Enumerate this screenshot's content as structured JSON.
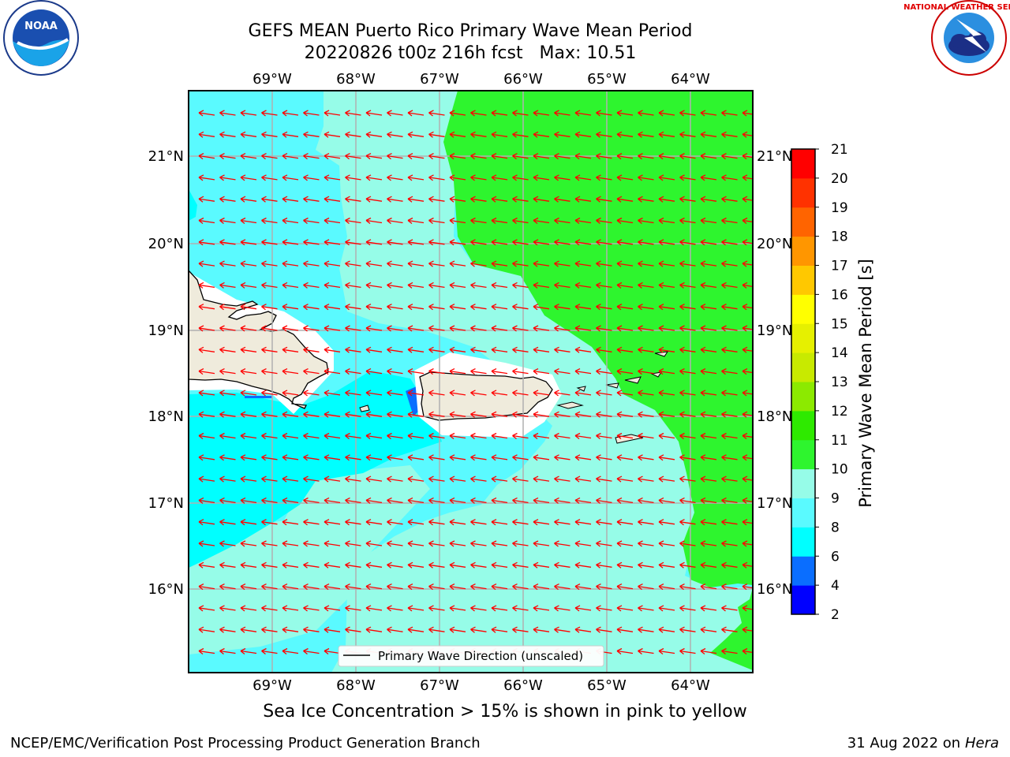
{
  "title": {
    "line1": "GEFS MEAN Puerto Rico Primary Wave Mean Period",
    "line2": "20220826 t00z 216h fcst   Max: 10.51"
  },
  "map": {
    "lon_labels": [
      "69°W",
      "68°W",
      "67°W",
      "66°W",
      "65°W",
      "64°W"
    ],
    "lat_labels": [
      "21°N",
      "20°N",
      "19°N",
      "18°N",
      "17°N",
      "16°N"
    ],
    "legend_label": "Primary Wave Direction (unscaled)",
    "arrow_color": "#ff0000",
    "land_color": "#efebdc"
  },
  "colorbar": {
    "label": "Primary Wave Mean Period [s]",
    "ticks": [
      "2",
      "4",
      "6",
      "8",
      "9",
      "10",
      "11",
      "12",
      "13",
      "14",
      "15",
      "16",
      "17",
      "18",
      "19",
      "20",
      "21"
    ],
    "colors": [
      "#0000ff",
      "#0a6eff",
      "#00ffff",
      "#5afaff",
      "#96fce8",
      "#2ef52e",
      "#2eea00",
      "#8cea00",
      "#c8ea00",
      "#e6f000",
      "#ffff00",
      "#ffc800",
      "#ff9600",
      "#ff6400",
      "#ff3200",
      "#ff0000"
    ]
  },
  "logos": {
    "noaa": "NOAA",
    "nws": "NATIONAL WEATHER SERVICE"
  },
  "footer": {
    "note": "Sea Ice Concentration > 15% is shown in pink to yellow",
    "credit": "NCEP/EMC/Verification Post Processing Product Generation Branch",
    "date": "31 Aug 2022 on",
    "host": "Hera"
  }
}
